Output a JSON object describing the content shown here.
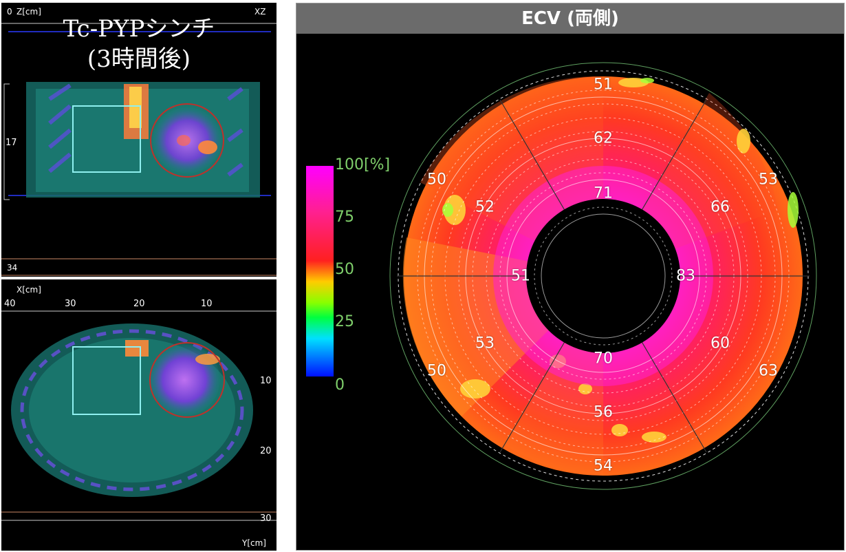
{
  "scan_xz": {
    "title_line1": "Tc-PYPシンチ",
    "title_line2": "(3時間後)",
    "axis_label": "Z[cm]",
    "view_label": "XZ",
    "tick_top": "0",
    "tick_mid": "17",
    "tick_bottom": "34"
  },
  "scan_xy": {
    "axis_label_x": "X[cm]",
    "axis_label_y": "Y[cm]",
    "x_ticks": [
      "40",
      "30",
      "20",
      "10"
    ],
    "y_ticks": [
      "10",
      "20",
      "30"
    ]
  },
  "ecv": {
    "title": "ECV (両側)",
    "colorbar": {
      "labels": [
        "100[%]",
        "75",
        "50",
        "25",
        "0"
      ]
    },
    "segments": {
      "outer": [
        "51",
        "53",
        "63",
        "54",
        "50",
        "50"
      ],
      "middle": [
        "62",
        "66",
        "60",
        "56",
        "53",
        "52"
      ],
      "inner": [
        "71",
        "83",
        "70",
        "51"
      ]
    }
  },
  "colors": {
    "background": "#000000",
    "header": "#6b6b6b",
    "roi_box": "#8ff0f0",
    "roi_circle": "#c0302a",
    "colorbar_label": "#7fcf6b"
  }
}
